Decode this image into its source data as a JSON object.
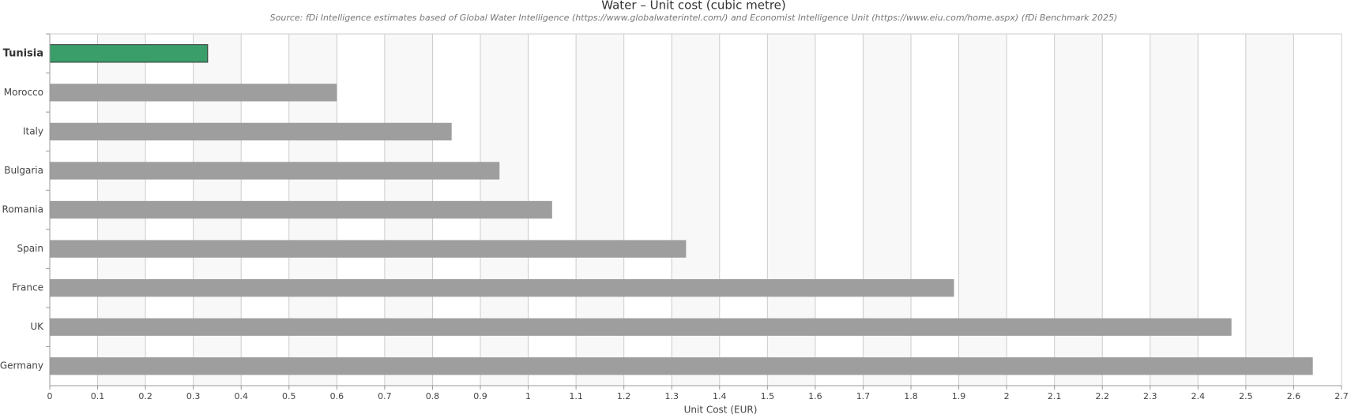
{
  "chart_data": {
    "type": "bar",
    "orientation": "horizontal",
    "title": "Water – Unit cost (cubic metre)",
    "subtitle": "Source: fDi Intelligence estimates based of Global Water Intelligence (https://www.globalwaterintel.com/) and Economist Intelligence Unit (https://www.eiu.com/home.aspx) (fDi Benchmark 2025)",
    "x_label": "Unit Cost (EUR)",
    "categories": [
      "Tunisia",
      "Morocco",
      "Italy",
      "Bulgaria",
      "Romania",
      "Spain",
      "France",
      "UK",
      "Germany"
    ],
    "values": [
      0.33,
      0.6,
      0.84,
      0.94,
      1.05,
      1.33,
      1.89,
      2.47,
      2.64
    ],
    "colors": [
      "#3a9e6a",
      "#9e9e9e",
      "#9e9e9e",
      "#9e9e9e",
      "#9e9e9e",
      "#9e9e9e",
      "#9e9e9e",
      "#9e9e9e",
      "#9e9e9e"
    ],
    "highlight": 0,
    "xlim": [
      0,
      2.7
    ],
    "xticks": [
      0,
      0.1,
      0.2,
      0.3,
      0.4,
      0.5,
      0.6,
      0.7,
      0.8,
      0.9,
      1,
      1.1,
      1.2,
      1.3,
      1.4,
      1.5,
      1.6,
      1.7,
      1.8,
      1.9,
      2,
      2.1,
      2.2,
      2.3,
      2.4,
      2.5,
      2.6,
      2.7
    ],
    "grid": true
  }
}
